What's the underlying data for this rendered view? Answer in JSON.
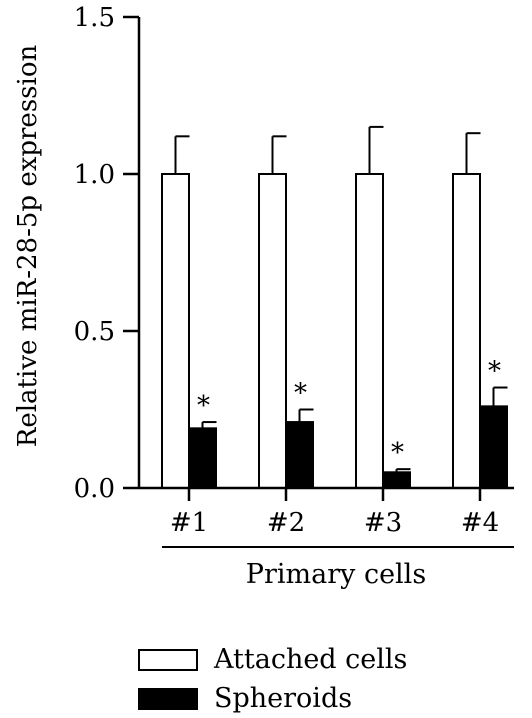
{
  "chart_data": {
    "type": "bar",
    "title": "",
    "ylabel": "Relative miR-28-5p expression",
    "xlabel": "Primary cells",
    "ylim": [
      0,
      1.5
    ],
    "yticks": [
      "0.0",
      "0.5",
      "1.0",
      "1.5"
    ],
    "categories": [
      "#1",
      "#2",
      "#3",
      "#4"
    ],
    "series": [
      {
        "name": "Attached cells",
        "values": [
          1.0,
          1.0,
          1.0,
          1.0
        ],
        "errors": [
          0.12,
          0.12,
          0.15,
          0.13
        ],
        "color": "#ffffff"
      },
      {
        "name": "Spheroids",
        "values": [
          0.19,
          0.21,
          0.05,
          0.26
        ],
        "errors": [
          0.02,
          0.04,
          0.01,
          0.06
        ],
        "color": "#000000",
        "annotations": [
          "*",
          "*",
          "*",
          "*"
        ]
      }
    ],
    "legend_position": "bottom-left"
  }
}
